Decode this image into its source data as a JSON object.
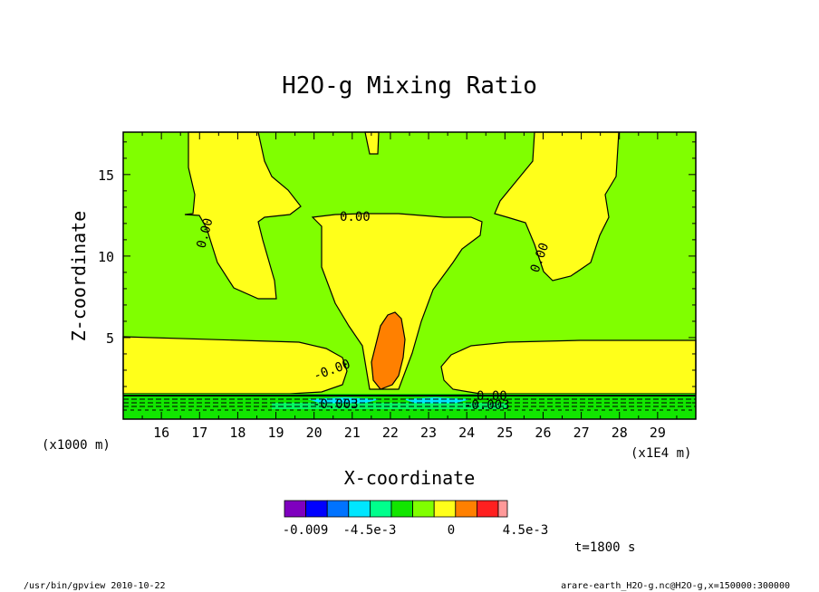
{
  "chart_data": {
    "type": "contour",
    "title": "H2O-g Mixing Ratio",
    "xlabel": "X-coordinate",
    "ylabel": "Z-coordinate",
    "x_unit_left": "(x1000 m)",
    "x_unit_right": "(x1E4 m)",
    "x_ticks": [
      "16",
      "17",
      "18",
      "19",
      "20",
      "21",
      "22",
      "23",
      "24",
      "25",
      "26",
      "27",
      "28",
      "29"
    ],
    "y_ticks": [
      "5",
      "10",
      "15"
    ],
    "xlim": [
      15.0,
      30.0
    ],
    "ylim": [
      0,
      17.6
    ],
    "contour_labels": [
      "0.00",
      "0.00",
      "0.00",
      "-0.00",
      "-0.003",
      "0.00",
      "-0.003"
    ],
    "colorbar": {
      "colors": [
        "#7f00bf",
        "#0000ff",
        "#0073ff",
        "#00e6ff",
        "#00ff8c",
        "#12e600",
        "#80ff00",
        "#ffff1a",
        "#ff8000",
        "#ff2020",
        "#ff9999"
      ],
      "labels": [
        "-0.009",
        "-4.5e-3",
        "0",
        "4.5e-3"
      ]
    },
    "time_label": "t=1800 s",
    "footer_left": "/usr/bin/gpview  2010-10-22",
    "footer_right": "arare-earth_H2O-g.nc@H2O-g,x=150000:300000"
  }
}
